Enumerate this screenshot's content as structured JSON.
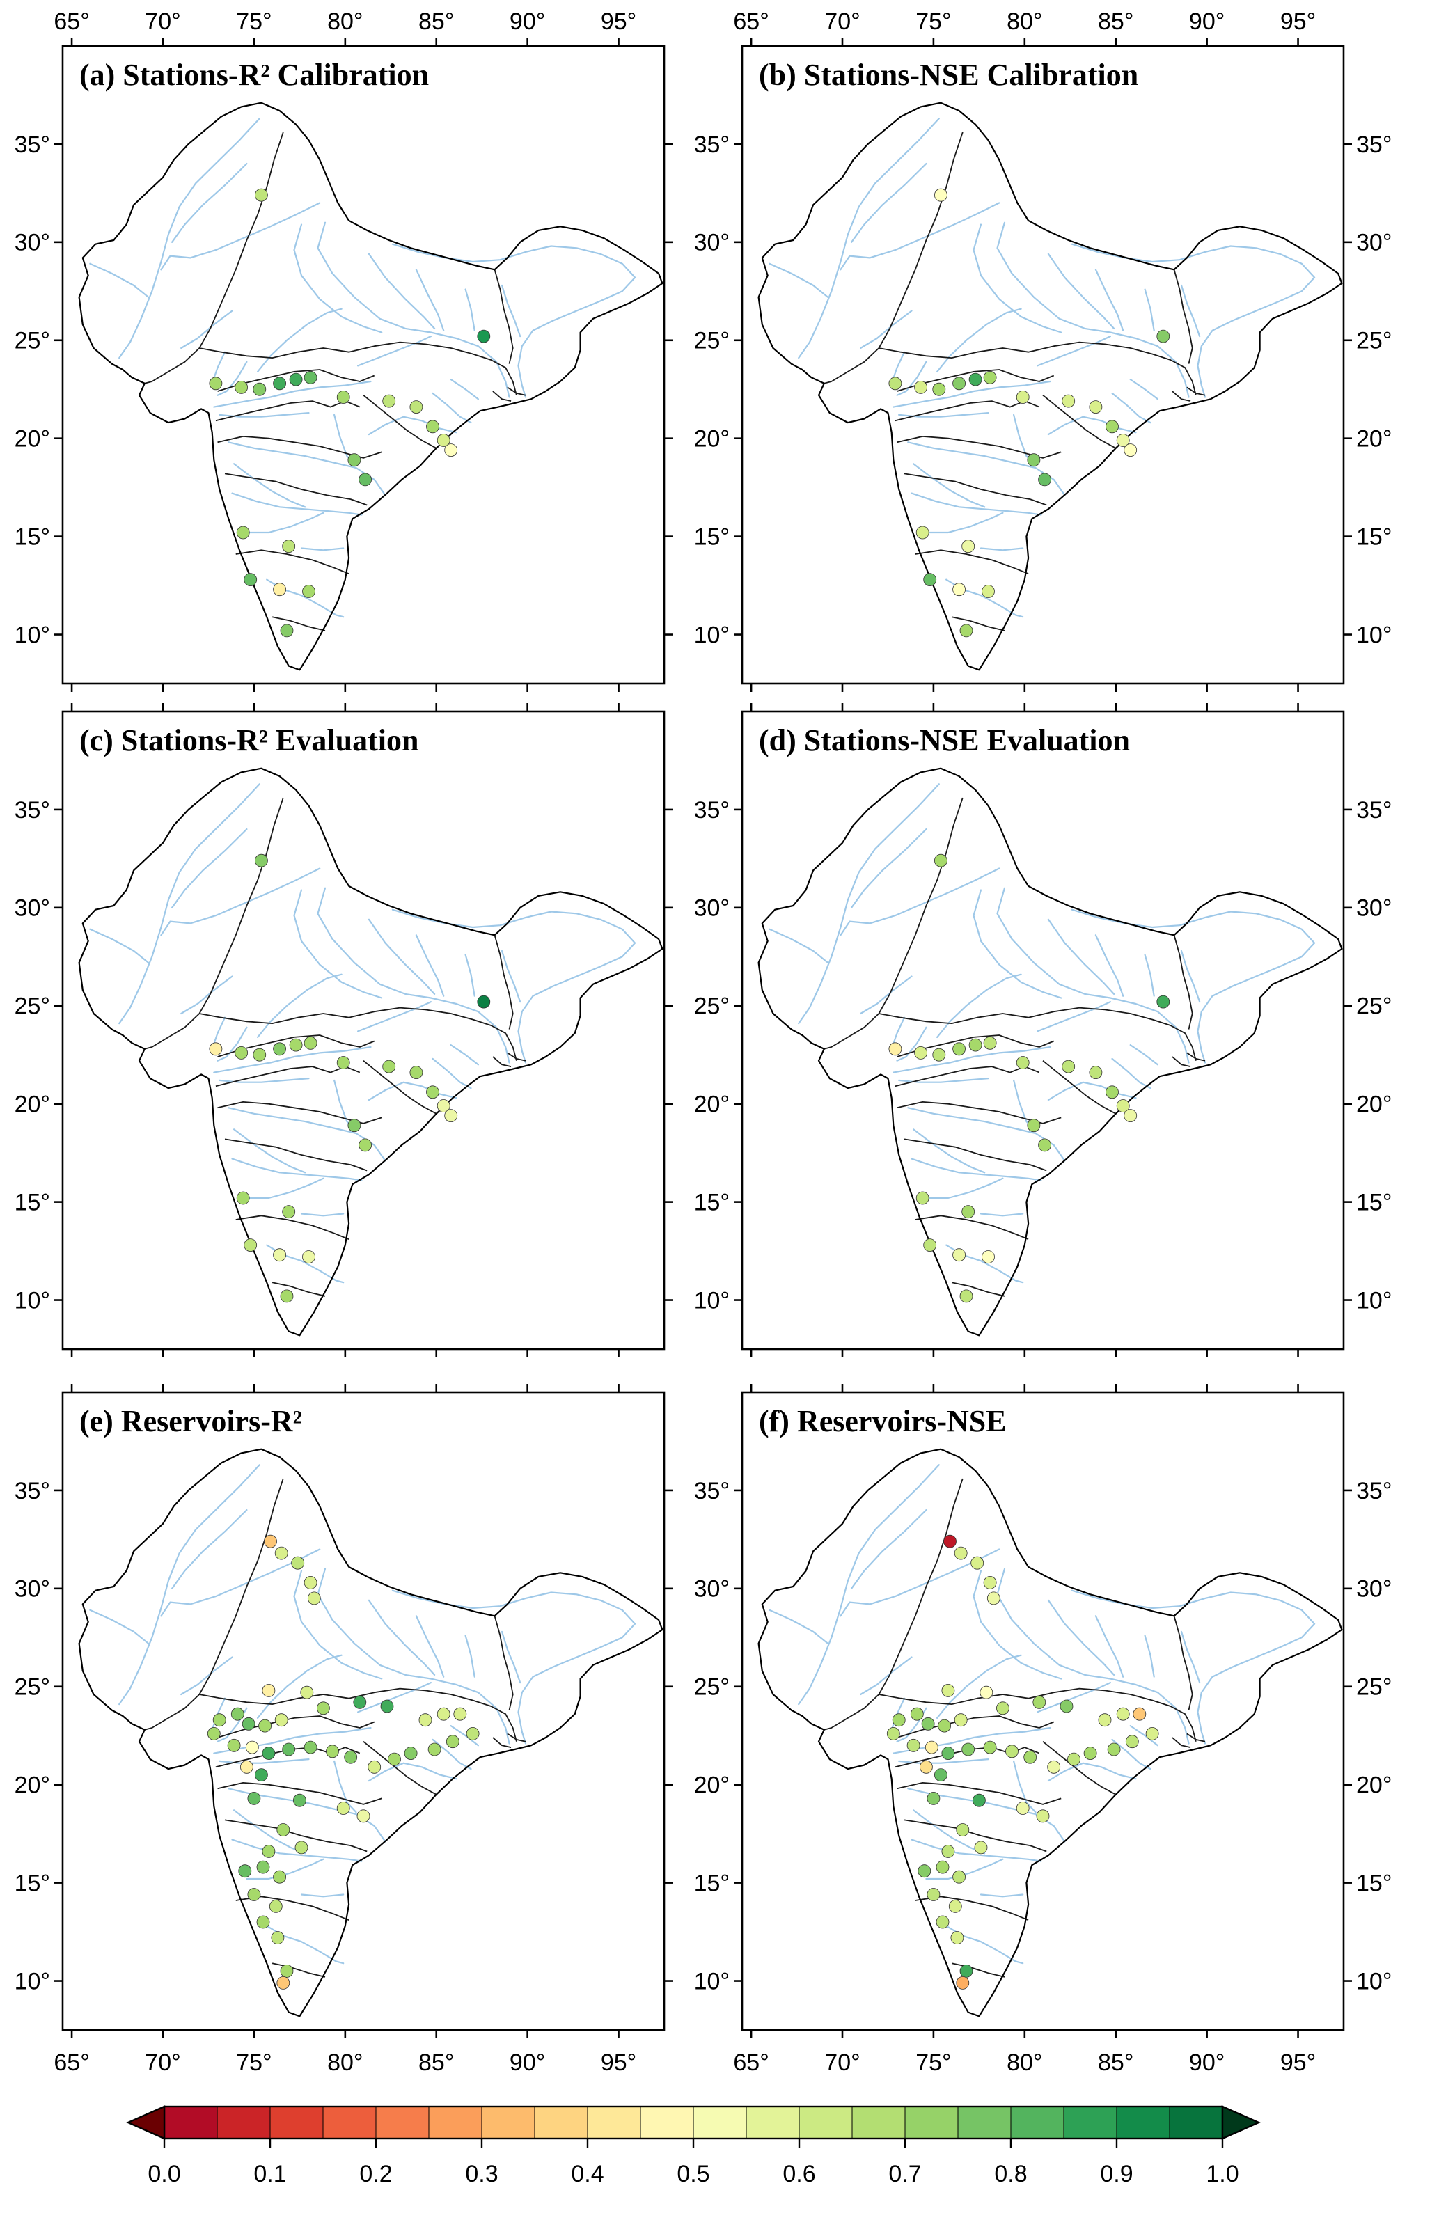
{
  "page": {
    "background": "#ffffff"
  },
  "axes": {
    "lon_tick_labels": [
      "65°",
      "70°",
      "75°",
      "80°",
      "85°",
      "90°",
      "95°"
    ],
    "lon_tick_values": [
      65,
      70,
      75,
      80,
      85,
      90,
      95
    ],
    "lat_tick_labels": [
      "10°",
      "15°",
      "20°",
      "25°",
      "30°",
      "35°"
    ],
    "lat_tick_values": [
      10,
      15,
      20,
      25,
      30,
      35
    ],
    "lon_range": [
      64.5,
      97.5
    ],
    "lat_range": [
      7.5,
      40.0
    ],
    "grid": false
  },
  "colorbar": {
    "tick_labels": [
      "0.0",
      "0.1",
      "0.2",
      "0.3",
      "0.4",
      "0.5",
      "0.6",
      "0.7",
      "0.8",
      "0.9",
      "1.0"
    ],
    "min": 0.0,
    "max": 1.0,
    "segments": 20,
    "under_arrow_color": "#6a0002",
    "over_arrow_color": "#00391b",
    "colormap_stops": [
      [
        0.0,
        "#a50026"
      ],
      [
        0.1,
        "#d73027"
      ],
      [
        0.2,
        "#f46d43"
      ],
      [
        0.3,
        "#fdae61"
      ],
      [
        0.4,
        "#fee08b"
      ],
      [
        0.5,
        "#ffffbf"
      ],
      [
        0.6,
        "#d9ef8b"
      ],
      [
        0.7,
        "#a6d96a"
      ],
      [
        0.8,
        "#66bd63"
      ],
      [
        0.9,
        "#1a9850"
      ],
      [
        1.0,
        "#006837"
      ]
    ]
  },
  "map_style": {
    "river_color": "#9ec8e8",
    "boundary_color": "#1a1a1a",
    "dot_stroke": "#333333"
  },
  "chart_data": {
    "type": "scatter-map",
    "legend_position": "bottom",
    "panels": [
      {
        "id": "a",
        "title": "(a) Stations-R² Calibration",
        "points": [
          [
            75.4,
            32.4,
            0.65
          ],
          [
            87.6,
            25.2,
            0.9
          ],
          [
            72.9,
            22.8,
            0.7
          ],
          [
            74.3,
            22.6,
            0.7
          ],
          [
            75.3,
            22.5,
            0.75
          ],
          [
            76.4,
            22.8,
            0.85
          ],
          [
            77.3,
            23.0,
            0.85
          ],
          [
            78.1,
            23.1,
            0.8
          ],
          [
            79.9,
            22.1,
            0.7
          ],
          [
            82.4,
            21.9,
            0.65
          ],
          [
            83.9,
            21.6,
            0.65
          ],
          [
            84.8,
            20.6,
            0.7
          ],
          [
            85.4,
            19.9,
            0.6
          ],
          [
            85.8,
            19.4,
            0.5
          ],
          [
            80.5,
            18.9,
            0.75
          ],
          [
            81.1,
            17.9,
            0.8
          ],
          [
            74.4,
            15.2,
            0.7
          ],
          [
            76.9,
            14.5,
            0.65
          ],
          [
            74.8,
            12.8,
            0.8
          ],
          [
            76.4,
            12.3,
            0.45
          ],
          [
            78.0,
            12.2,
            0.7
          ],
          [
            76.8,
            10.2,
            0.75
          ]
        ]
      },
      {
        "id": "b",
        "title": "(b) Stations-NSE Calibration",
        "points": [
          [
            75.4,
            32.4,
            0.5
          ],
          [
            87.6,
            25.2,
            0.75
          ],
          [
            72.9,
            22.8,
            0.65
          ],
          [
            74.3,
            22.6,
            0.6
          ],
          [
            75.3,
            22.5,
            0.7
          ],
          [
            76.4,
            22.8,
            0.75
          ],
          [
            77.3,
            23.0,
            0.85
          ],
          [
            78.1,
            23.1,
            0.7
          ],
          [
            79.9,
            22.1,
            0.6
          ],
          [
            82.4,
            21.9,
            0.6
          ],
          [
            83.9,
            21.6,
            0.6
          ],
          [
            84.8,
            20.6,
            0.7
          ],
          [
            85.4,
            19.9,
            0.55
          ],
          [
            85.8,
            19.4,
            0.5
          ],
          [
            80.5,
            18.9,
            0.75
          ],
          [
            81.1,
            17.9,
            0.8
          ],
          [
            74.4,
            15.2,
            0.6
          ],
          [
            76.9,
            14.5,
            0.55
          ],
          [
            74.8,
            12.8,
            0.8
          ],
          [
            76.4,
            12.3,
            0.5
          ],
          [
            78.0,
            12.2,
            0.6
          ],
          [
            76.8,
            10.2,
            0.7
          ]
        ]
      },
      {
        "id": "c",
        "title": "(c) Stations-R² Evaluation",
        "points": [
          [
            75.4,
            32.4,
            0.75
          ],
          [
            87.6,
            25.2,
            0.95
          ],
          [
            72.9,
            22.8,
            0.45
          ],
          [
            74.3,
            22.6,
            0.7
          ],
          [
            75.3,
            22.5,
            0.7
          ],
          [
            76.4,
            22.8,
            0.75
          ],
          [
            77.3,
            23.0,
            0.7
          ],
          [
            78.1,
            23.1,
            0.7
          ],
          [
            79.9,
            22.1,
            0.7
          ],
          [
            82.4,
            21.9,
            0.7
          ],
          [
            83.9,
            21.6,
            0.7
          ],
          [
            84.8,
            20.6,
            0.7
          ],
          [
            85.4,
            19.9,
            0.55
          ],
          [
            85.8,
            19.4,
            0.55
          ],
          [
            80.5,
            18.9,
            0.75
          ],
          [
            81.1,
            17.9,
            0.7
          ],
          [
            74.4,
            15.2,
            0.7
          ],
          [
            76.9,
            14.5,
            0.7
          ],
          [
            74.8,
            12.8,
            0.65
          ],
          [
            76.4,
            12.3,
            0.55
          ],
          [
            78.0,
            12.2,
            0.55
          ],
          [
            76.8,
            10.2,
            0.7
          ]
        ]
      },
      {
        "id": "d",
        "title": "(d) Stations-NSE Evaluation",
        "points": [
          [
            75.4,
            32.4,
            0.7
          ],
          [
            87.6,
            25.2,
            0.85
          ],
          [
            72.9,
            22.8,
            0.45
          ],
          [
            74.3,
            22.6,
            0.6
          ],
          [
            75.3,
            22.5,
            0.65
          ],
          [
            76.4,
            22.8,
            0.7
          ],
          [
            77.3,
            23.0,
            0.7
          ],
          [
            78.1,
            23.1,
            0.65
          ],
          [
            79.9,
            22.1,
            0.65
          ],
          [
            82.4,
            21.9,
            0.65
          ],
          [
            83.9,
            21.6,
            0.65
          ],
          [
            84.8,
            20.6,
            0.7
          ],
          [
            85.4,
            19.9,
            0.6
          ],
          [
            85.8,
            19.4,
            0.55
          ],
          [
            80.5,
            18.9,
            0.7
          ],
          [
            81.1,
            17.9,
            0.7
          ],
          [
            74.4,
            15.2,
            0.65
          ],
          [
            76.9,
            14.5,
            0.7
          ],
          [
            74.8,
            12.8,
            0.65
          ],
          [
            76.4,
            12.3,
            0.55
          ],
          [
            78.0,
            12.2,
            0.5
          ],
          [
            76.8,
            10.2,
            0.65
          ]
        ]
      },
      {
        "id": "e",
        "title": "(e) Reservoirs-R²",
        "points": [
          [
            75.9,
            32.4,
            0.35
          ],
          [
            76.5,
            31.8,
            0.6
          ],
          [
            77.4,
            31.3,
            0.65
          ],
          [
            78.1,
            30.3,
            0.6
          ],
          [
            78.3,
            29.5,
            0.6
          ],
          [
            75.8,
            24.8,
            0.45
          ],
          [
            77.9,
            24.7,
            0.6
          ],
          [
            80.8,
            24.2,
            0.85
          ],
          [
            82.3,
            24.0,
            0.85
          ],
          [
            78.8,
            23.9,
            0.7
          ],
          [
            74.1,
            23.6,
            0.75
          ],
          [
            73.1,
            23.3,
            0.7
          ],
          [
            72.8,
            22.6,
            0.7
          ],
          [
            74.7,
            23.1,
            0.8
          ],
          [
            75.6,
            23.0,
            0.7
          ],
          [
            76.5,
            23.3,
            0.6
          ],
          [
            84.4,
            23.3,
            0.6
          ],
          [
            85.4,
            23.6,
            0.6
          ],
          [
            86.3,
            23.6,
            0.6
          ],
          [
            87.0,
            22.6,
            0.65
          ],
          [
            85.9,
            22.2,
            0.7
          ],
          [
            84.9,
            21.8,
            0.7
          ],
          [
            83.6,
            21.6,
            0.75
          ],
          [
            82.7,
            21.3,
            0.7
          ],
          [
            81.6,
            20.9,
            0.6
          ],
          [
            73.9,
            22.0,
            0.7
          ],
          [
            74.9,
            21.9,
            0.5
          ],
          [
            75.8,
            21.6,
            0.85
          ],
          [
            76.9,
            21.8,
            0.8
          ],
          [
            78.1,
            21.9,
            0.75
          ],
          [
            79.3,
            21.7,
            0.7
          ],
          [
            80.3,
            21.4,
            0.75
          ],
          [
            74.6,
            20.9,
            0.45
          ],
          [
            75.4,
            20.5,
            0.85
          ],
          [
            75.0,
            19.3,
            0.8
          ],
          [
            77.5,
            19.2,
            0.8
          ],
          [
            79.9,
            18.8,
            0.6
          ],
          [
            81.0,
            18.4,
            0.55
          ],
          [
            76.6,
            17.7,
            0.7
          ],
          [
            77.6,
            16.8,
            0.65
          ],
          [
            75.8,
            16.6,
            0.7
          ],
          [
            75.5,
            15.8,
            0.75
          ],
          [
            74.5,
            15.6,
            0.8
          ],
          [
            76.4,
            15.3,
            0.7
          ],
          [
            75.0,
            14.4,
            0.7
          ],
          [
            76.2,
            13.8,
            0.65
          ],
          [
            75.5,
            13.0,
            0.7
          ],
          [
            76.3,
            12.2,
            0.65
          ],
          [
            76.8,
            10.5,
            0.7
          ],
          [
            76.6,
            9.9,
            0.35
          ]
        ]
      },
      {
        "id": "f",
        "title": "(f) Reservoirs-NSE",
        "points": [
          [
            75.9,
            32.4,
            0.05
          ],
          [
            76.5,
            31.8,
            0.6
          ],
          [
            77.4,
            31.3,
            0.6
          ],
          [
            78.1,
            30.3,
            0.6
          ],
          [
            78.3,
            29.5,
            0.55
          ],
          [
            75.8,
            24.8,
            0.6
          ],
          [
            77.9,
            24.7,
            0.5
          ],
          [
            80.8,
            24.2,
            0.7
          ],
          [
            82.3,
            24.0,
            0.75
          ],
          [
            78.8,
            23.9,
            0.65
          ],
          [
            74.1,
            23.6,
            0.7
          ],
          [
            73.1,
            23.3,
            0.7
          ],
          [
            72.8,
            22.6,
            0.65
          ],
          [
            74.7,
            23.1,
            0.75
          ],
          [
            75.6,
            23.0,
            0.7
          ],
          [
            76.5,
            23.3,
            0.6
          ],
          [
            84.4,
            23.3,
            0.6
          ],
          [
            85.4,
            23.6,
            0.6
          ],
          [
            86.3,
            23.6,
            0.35
          ],
          [
            87.0,
            22.6,
            0.6
          ],
          [
            85.9,
            22.2,
            0.65
          ],
          [
            84.9,
            21.8,
            0.7
          ],
          [
            83.6,
            21.6,
            0.7
          ],
          [
            82.7,
            21.3,
            0.65
          ],
          [
            81.6,
            20.9,
            0.55
          ],
          [
            73.9,
            22.0,
            0.65
          ],
          [
            74.9,
            21.9,
            0.45
          ],
          [
            75.8,
            21.6,
            0.8
          ],
          [
            76.9,
            21.8,
            0.75
          ],
          [
            78.1,
            21.9,
            0.7
          ],
          [
            79.3,
            21.7,
            0.65
          ],
          [
            80.3,
            21.4,
            0.7
          ],
          [
            74.6,
            20.9,
            0.4
          ],
          [
            75.4,
            20.5,
            0.8
          ],
          [
            75.0,
            19.3,
            0.75
          ],
          [
            77.5,
            19.2,
            0.85
          ],
          [
            79.9,
            18.8,
            0.55
          ],
          [
            81.0,
            18.4,
            0.6
          ],
          [
            76.6,
            17.7,
            0.65
          ],
          [
            77.6,
            16.8,
            0.6
          ],
          [
            75.8,
            16.6,
            0.65
          ],
          [
            75.5,
            15.8,
            0.7
          ],
          [
            74.5,
            15.6,
            0.75
          ],
          [
            76.4,
            15.3,
            0.65
          ],
          [
            75.0,
            14.4,
            0.65
          ],
          [
            76.2,
            13.8,
            0.6
          ],
          [
            75.5,
            13.0,
            0.65
          ],
          [
            76.3,
            12.2,
            0.6
          ],
          [
            76.8,
            10.5,
            0.85
          ],
          [
            76.6,
            9.9,
            0.3
          ]
        ]
      }
    ]
  }
}
